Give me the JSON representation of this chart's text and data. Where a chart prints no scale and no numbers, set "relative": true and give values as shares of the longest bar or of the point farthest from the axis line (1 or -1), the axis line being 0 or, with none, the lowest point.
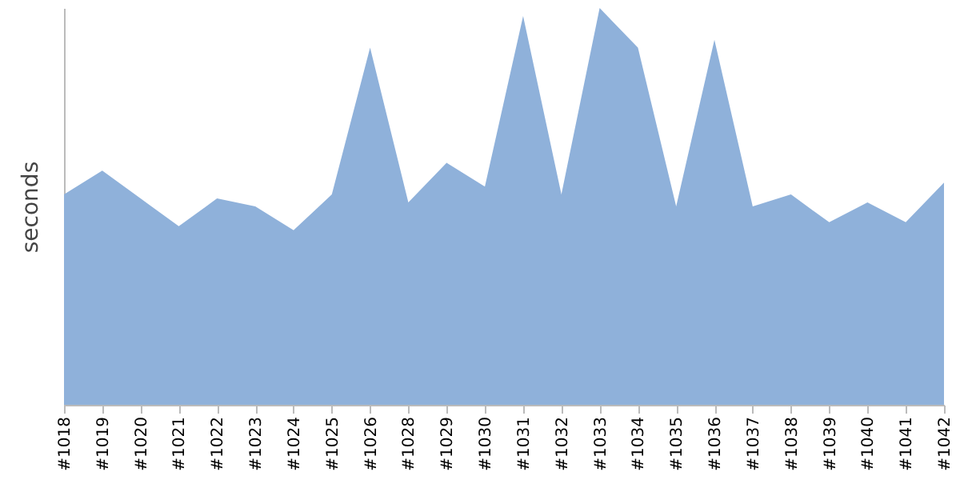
{
  "chart_data": {
    "type": "area",
    "ylabel": "seconds",
    "relative": true,
    "color": "#8fb1da",
    "categories": [
      "#1018",
      "#1019",
      "#1020",
      "#1021",
      "#1022",
      "#1023",
      "#1024",
      "#1025",
      "#1026",
      "#1028",
      "#1029",
      "#1030",
      "#1031",
      "#1032",
      "#1033",
      "#1034",
      "#1035",
      "#1036",
      "#1037",
      "#1038",
      "#1039",
      "#1040",
      "#1041",
      "#1042"
    ],
    "values": [
      0.53,
      0.59,
      0.52,
      0.45,
      0.52,
      0.5,
      0.44,
      0.53,
      0.9,
      0.51,
      0.61,
      0.55,
      0.98,
      0.53,
      1,
      0.9,
      0.5,
      0.92,
      0.5,
      0.53,
      0.46,
      0.51,
      0.46,
      0.56
    ]
  }
}
